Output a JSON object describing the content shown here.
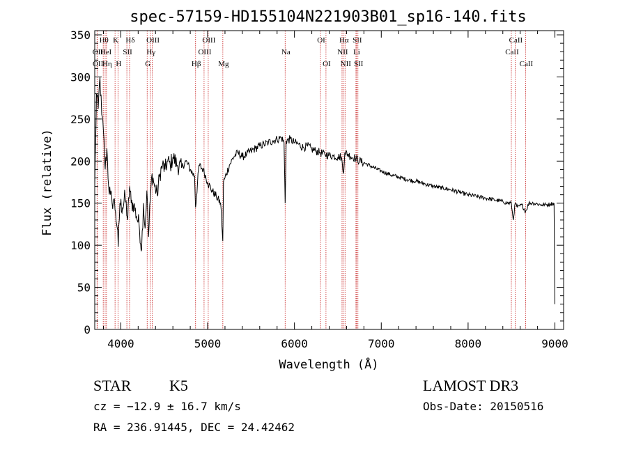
{
  "chart_data": {
    "type": "line",
    "title": "spec-57159-HD155104N221903B01_sp16-140.fits",
    "xlabel": "Wavelength (Å)",
    "ylabel": "Flux (relative)",
    "xlim": [
      3700,
      9100
    ],
    "ylim": [
      0,
      355
    ],
    "xticks": [
      4000,
      5000,
      6000,
      7000,
      8000,
      9000
    ],
    "yticks": [
      0,
      50,
      100,
      150,
      200,
      250,
      300,
      350
    ],
    "grid": false,
    "line_color": "#000000",
    "marker_color": "#cc3333",
    "spectrum": {
      "x": [
        3700,
        3720,
        3740,
        3760,
        3780,
        3800,
        3820,
        3840,
        3860,
        3880,
        3900,
        3920,
        3940,
        3960,
        3970,
        3990,
        4020,
        4050,
        4080,
        4101,
        4120,
        4150,
        4180,
        4210,
        4240,
        4260,
        4280,
        4300,
        4320,
        4340,
        4360,
        4390,
        4420,
        4450,
        4480,
        4510,
        4540,
        4570,
        4600,
        4650,
        4700,
        4750,
        4800,
        4850,
        4861,
        4900,
        4950,
        5000,
        5050,
        5100,
        5150,
        5175,
        5183,
        5200,
        5250,
        5300,
        5350,
        5400,
        5450,
        5500,
        5550,
        5600,
        5650,
        5700,
        5750,
        5800,
        5850,
        5880,
        5893,
        5905,
        5950,
        6000,
        6050,
        6100,
        6150,
        6200,
        6250,
        6300,
        6350,
        6400,
        6450,
        6500,
        6540,
        6563,
        6580,
        6620,
        6650,
        6700,
        6750,
        6800,
        6900,
        7000,
        7100,
        7200,
        7300,
        7400,
        7500,
        7600,
        7700,
        7800,
        7900,
        8000,
        8100,
        8200,
        8300,
        8400,
        8450,
        8498,
        8520,
        8542,
        8570,
        8620,
        8662,
        8700,
        8750,
        8800,
        8850,
        8900,
        8950,
        8990,
        9000
      ],
      "y": [
        170,
        280,
        262,
        300,
        255,
        235,
        190,
        215,
        170,
        160,
        150,
        155,
        140,
        120,
        98,
        150,
        145,
        158,
        130,
        170,
        150,
        148,
        135,
        125,
        95,
        150,
        120,
        165,
        110,
        155,
        185,
        170,
        160,
        185,
        195,
        190,
        200,
        195,
        205,
        195,
        192,
        200,
        190,
        182,
        145,
        195,
        190,
        175,
        165,
        158,
        150,
        105,
        175,
        180,
        195,
        205,
        210,
        205,
        208,
        212,
        215,
        218,
        220,
        222,
        224,
        226,
        228,
        222,
        150,
        224,
        226,
        222,
        220,
        216,
        218,
        214,
        212,
        210,
        208,
        207,
        206,
        205,
        205,
        185,
        210,
        208,
        205,
        204,
        200,
        198,
        193,
        188,
        184,
        181,
        178,
        176,
        173,
        170,
        168,
        166,
        163,
        160,
        158,
        156,
        154,
        152,
        150,
        150,
        130,
        150,
        145,
        148,
        140,
        150,
        150,
        149,
        148,
        148,
        149,
        150,
        30
      ]
    },
    "line_markers": [
      {
        "name": "OII",
        "x": 3727,
        "row": 2
      },
      {
        "name": "OII",
        "x": 3729,
        "row": 3
      },
      {
        "name": "Hθ",
        "x": 3798,
        "row": 1
      },
      {
        "name": "HeI",
        "x": 3820,
        "row": 2
      },
      {
        "name": "Hη",
        "x": 3835,
        "row": 3
      },
      {
        "name": "K",
        "x": 3934,
        "row": 1
      },
      {
        "name": "H",
        "x": 3968,
        "row": 3
      },
      {
        "name": "SII",
        "x": 4070,
        "row": 2
      },
      {
        "name": "Hδ",
        "x": 4101,
        "row": 1
      },
      {
        "name": "G",
        "x": 4304,
        "row": 3
      },
      {
        "name": "Hγ",
        "x": 4340,
        "row": 2
      },
      {
        "name": "OIII",
        "x": 4363,
        "row": 1
      },
      {
        "name": "Hβ",
        "x": 4861,
        "row": 3
      },
      {
        "name": "OIII",
        "x": 4959,
        "row": 2
      },
      {
        "name": "OIII",
        "x": 5007,
        "row": 1
      },
      {
        "name": "Mg",
        "x": 5175,
        "row": 3
      },
      {
        "name": "Na",
        "x": 5893,
        "row": 2
      },
      {
        "name": "OI",
        "x": 6300,
        "row": 1
      },
      {
        "name": "OI",
        "x": 6363,
        "row": 3
      },
      {
        "name": "NII",
        "x": 6548,
        "row": 2
      },
      {
        "name": "Hα",
        "x": 6563,
        "row": 1
      },
      {
        "name": "NII",
        "x": 6583,
        "row": 3
      },
      {
        "name": "Li",
        "x": 6708,
        "row": 2
      },
      {
        "name": "SII",
        "x": 6716,
        "row": 1
      },
      {
        "name": "SII",
        "x": 6731,
        "row": 3
      },
      {
        "name": "CaII",
        "x": 8498,
        "row": 2
      },
      {
        "name": "CaII",
        "x": 8542,
        "row": 1
      },
      {
        "name": "CaII",
        "x": 8662,
        "row": 3
      }
    ]
  },
  "info": {
    "object_class": "STAR",
    "subclass": "K5",
    "survey": "LAMOST DR3",
    "redshift": "cz = −12.9 ± 16.7 km/s",
    "obs_date": "Obs-Date: 20150516",
    "coords": "RA = 236.91445, DEC =  24.42462"
  }
}
